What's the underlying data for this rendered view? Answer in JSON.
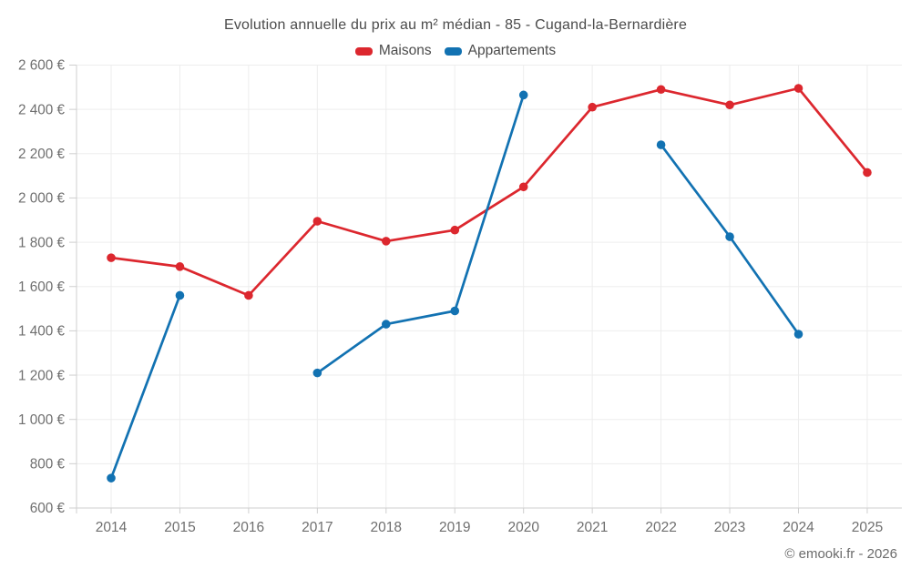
{
  "chart_data": {
    "type": "line",
    "title": "Evolution annuelle du prix au m² médian - 85 - Cugand-la-Bernardière",
    "categories": [
      "2014",
      "2015",
      "2016",
      "2017",
      "2018",
      "2019",
      "2020",
      "2021",
      "2022",
      "2023",
      "2024",
      "2025"
    ],
    "series": [
      {
        "name": "Maisons",
        "color": "#dc272e",
        "values": [
          1730,
          1690,
          1560,
          1895,
          1805,
          1855,
          2050,
          2410,
          2490,
          2420,
          2495,
          2115
        ]
      },
      {
        "name": "Appartements",
        "color": "#1272b2",
        "values": [
          735,
          1560,
          null,
          1210,
          1430,
          1490,
          2465,
          null,
          2240,
          1825,
          1385,
          null
        ]
      }
    ],
    "xlabel": "",
    "ylabel": "",
    "ylim": [
      600,
      2600
    ],
    "ytick_step": 200,
    "ytick_labels": [
      "600 €",
      "800 €",
      "1 000 €",
      "1 200 €",
      "1 400 €",
      "1 600 €",
      "1 800 €",
      "2 000 €",
      "2 200 €",
      "2 400 €",
      "2 600 €"
    ],
    "grid": true,
    "legend_position": "top"
  },
  "footer": {
    "copyright": "© emooki.fr - 2026"
  }
}
